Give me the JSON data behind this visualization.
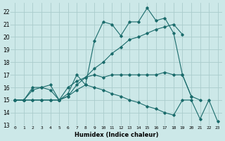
{
  "xlabel": "Humidex (Indice chaleur)",
  "bg_color": "#cce8e8",
  "grid_color": "#aacccc",
  "line_color": "#1a6b6b",
  "xlim": [
    -0.5,
    23.5
  ],
  "ylim": [
    13,
    22.7
  ],
  "yticks": [
    13,
    14,
    15,
    16,
    17,
    18,
    19,
    20,
    21,
    22
  ],
  "xticks": [
    0,
    1,
    2,
    3,
    4,
    5,
    6,
    7,
    8,
    9,
    10,
    11,
    12,
    13,
    14,
    15,
    16,
    17,
    18,
    19,
    20,
    21,
    22,
    23
  ],
  "series": [
    {
      "x": [
        0,
        1,
        2,
        3,
        4,
        5,
        6,
        7,
        8,
        9,
        10,
        11,
        12,
        13,
        14,
        15,
        16,
        17,
        18,
        19,
        20,
        21
      ],
      "y": [
        15,
        15,
        16,
        16,
        15.8,
        15,
        15.5,
        17,
        16.2,
        19.7,
        21.2,
        21,
        20.1,
        21.2,
        21.2,
        22.3,
        21.3,
        21.5,
        20.3,
        17,
        15.3,
        15
      ]
    },
    {
      "x": [
        0,
        1,
        2,
        3,
        4,
        5,
        6,
        7,
        8,
        9,
        10,
        11,
        12,
        13,
        14,
        15,
        16,
        17,
        18,
        19
      ],
      "y": [
        15,
        15,
        15,
        15,
        15,
        15,
        15.3,
        16.2,
        16.8,
        17.5,
        18,
        18.7,
        19.2,
        19.8,
        20.0,
        20.3,
        20.6,
        20.8,
        21.0,
        20.2
      ]
    },
    {
      "x": [
        0,
        1,
        2,
        3,
        4,
        5,
        6,
        7,
        8,
        9,
        10,
        11,
        12,
        13,
        14,
        15,
        16,
        17,
        18,
        19,
        20
      ],
      "y": [
        15,
        15,
        15.8,
        16,
        16.2,
        15,
        16,
        16.5,
        16.8,
        17,
        16.8,
        17,
        17,
        17,
        17,
        17,
        17,
        17.2,
        17,
        17,
        15.3
      ]
    },
    {
      "x": [
        0,
        1,
        2,
        3,
        4,
        5,
        6,
        7,
        8,
        9,
        10,
        11,
        12,
        13,
        14,
        15,
        16,
        17,
        18,
        19,
        20,
        21,
        22,
        23
      ],
      "y": [
        15,
        15,
        15,
        15,
        15,
        15,
        15.3,
        15.8,
        16.2,
        16,
        15.8,
        15.5,
        15.3,
        15,
        14.8,
        14.5,
        14.3,
        14,
        13.8,
        15,
        15,
        13.5,
        15,
        13.3
      ]
    }
  ]
}
